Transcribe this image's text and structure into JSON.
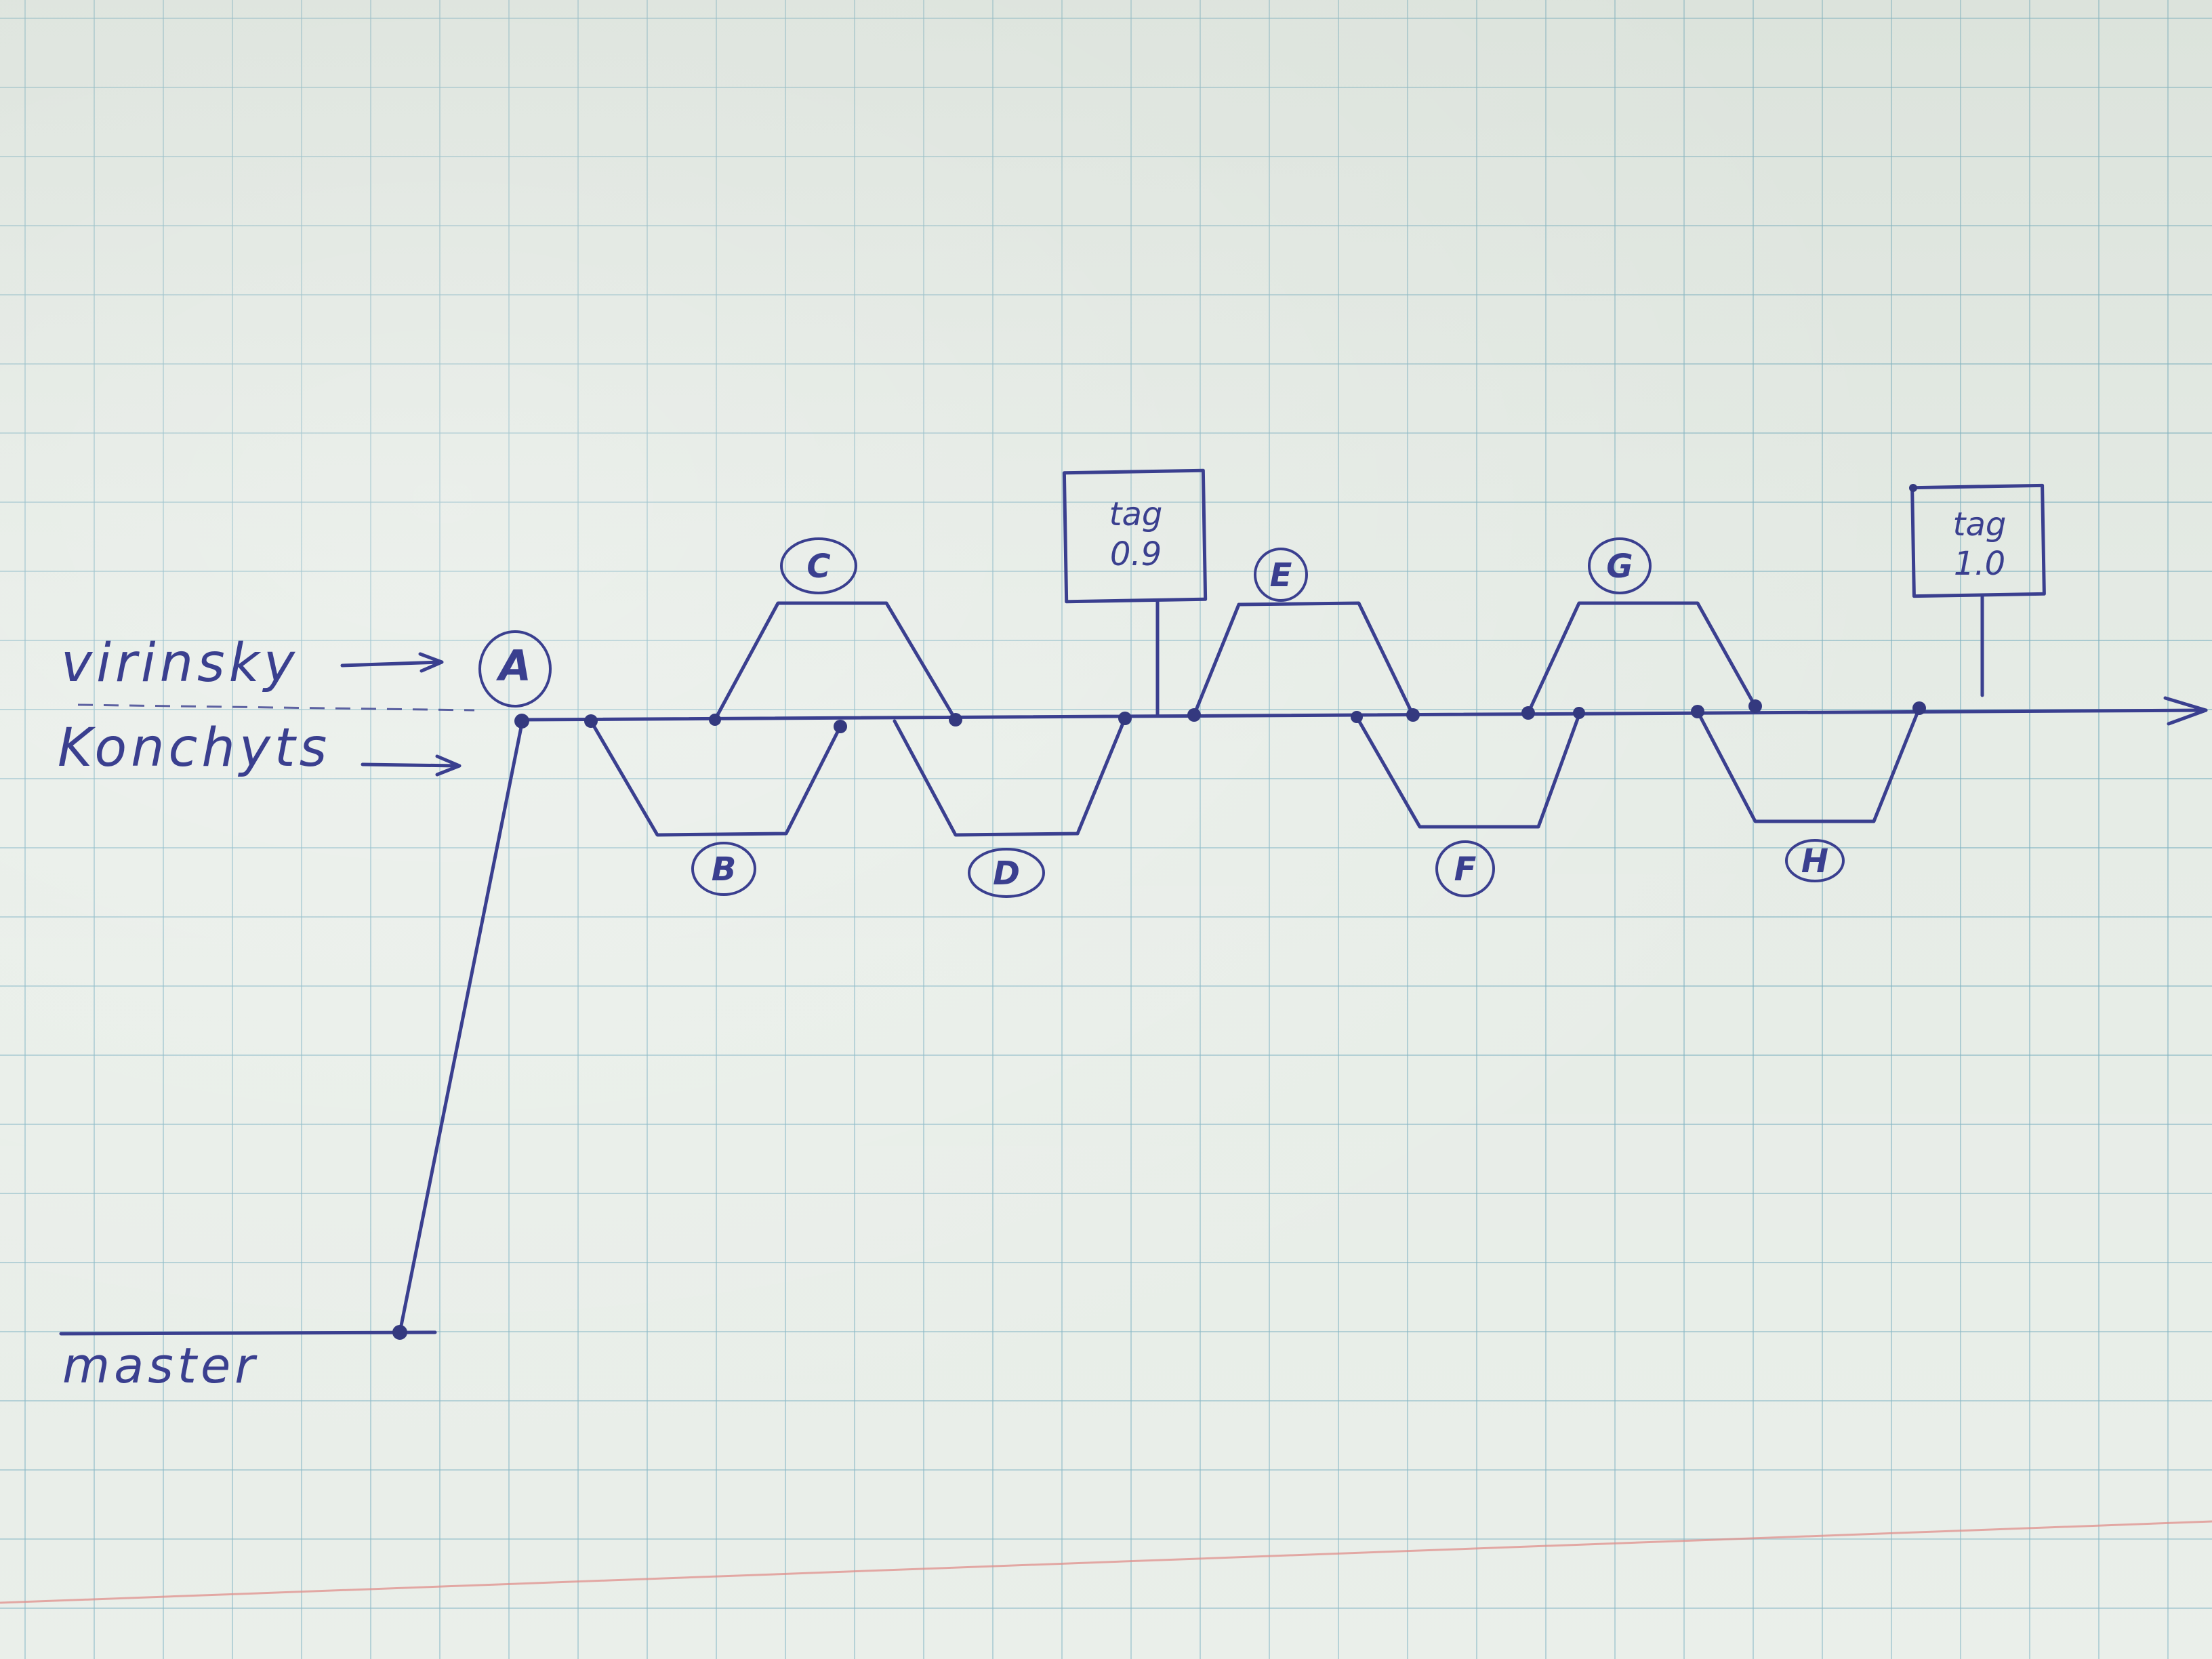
{
  "branches": {
    "virinsky": "virinsky",
    "konchyts": "Konchyts",
    "master": "master"
  },
  "commits": [
    "A",
    "B",
    "C",
    "D",
    "E",
    "F",
    "G",
    "H"
  ],
  "tags": [
    {
      "line1": "tag",
      "line2": "0.9"
    },
    {
      "line1": "tag",
      "line2": "1.0"
    }
  ],
  "colors": {
    "ink": "#3a3f8f",
    "grid": "#78afbe",
    "margin_line": "#e08a86",
    "paper": "#e6ece6"
  }
}
